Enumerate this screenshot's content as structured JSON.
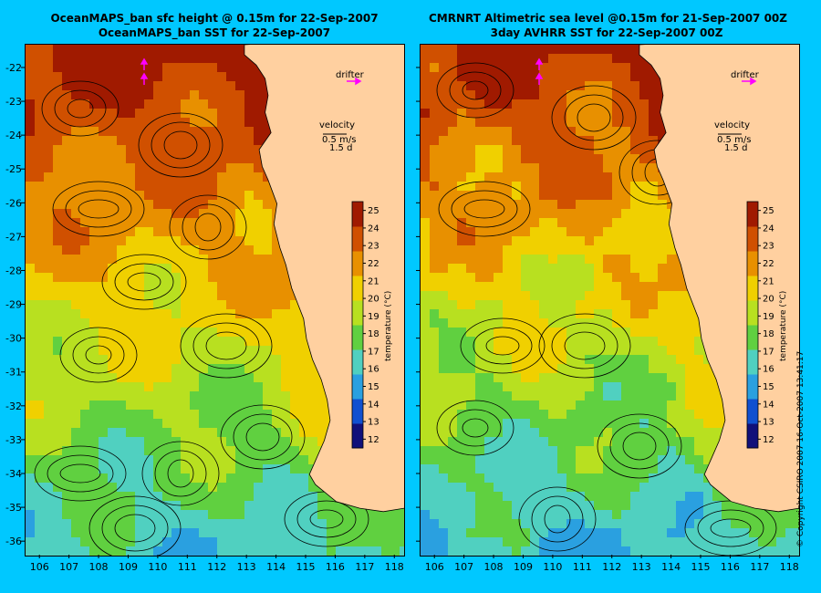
{
  "panels": [
    {
      "id": "left",
      "title_line1": "OceanMAPS_ban sfc height @ 0.15m for 22-Sep-2007",
      "title_line2": "OceanMAPS_ban SST for 22-Sep-2007"
    },
    {
      "id": "right",
      "title_line1": "CMRNRT Altimetric sea level  @0.15m  for 21-Sep-2007 00Z",
      "title_line2": "3day AVHRR SST for 22-Sep-2007 00Z"
    }
  ],
  "labels": {
    "drifter": "drifter",
    "velocity": "velocity",
    "velocity_scale": "0.5 m/s",
    "velocity_time": "1.5 d",
    "colorbar_label": "temperature (°C)"
  },
  "colorbar": {
    "min": 11.5,
    "max": 25.5,
    "ticks": [
      12,
      13,
      14,
      15,
      16,
      17,
      18,
      19,
      20,
      21,
      22,
      23,
      24,
      25
    ],
    "stops": [
      "#10107a",
      "#1050d0",
      "#2aa0e0",
      "#50d0c0",
      "#60d040",
      "#b8e020",
      "#f0d000",
      "#e89000",
      "#d05000",
      "#a01a00"
    ]
  },
  "axes": {
    "lon_ticks": [
      106,
      107,
      108,
      109,
      110,
      111,
      112,
      113,
      114,
      115,
      116,
      117,
      118
    ],
    "lat_ticks": [
      -22,
      -23,
      -24,
      -25,
      -26,
      -27,
      -28,
      -29,
      -30,
      -31,
      -32,
      -33,
      -34,
      -35,
      -36
    ],
    "lon_range": [
      105.5,
      118.3
    ],
    "lat_range": [
      -21.3,
      -36.4
    ]
  },
  "copyright": "© Copyright CSIRO 2007   16-Oct-2007 13:41:17",
  "colors": {
    "background": "#00c8ff",
    "land": "#ffd0a0",
    "vector": "#ff00ff"
  }
}
